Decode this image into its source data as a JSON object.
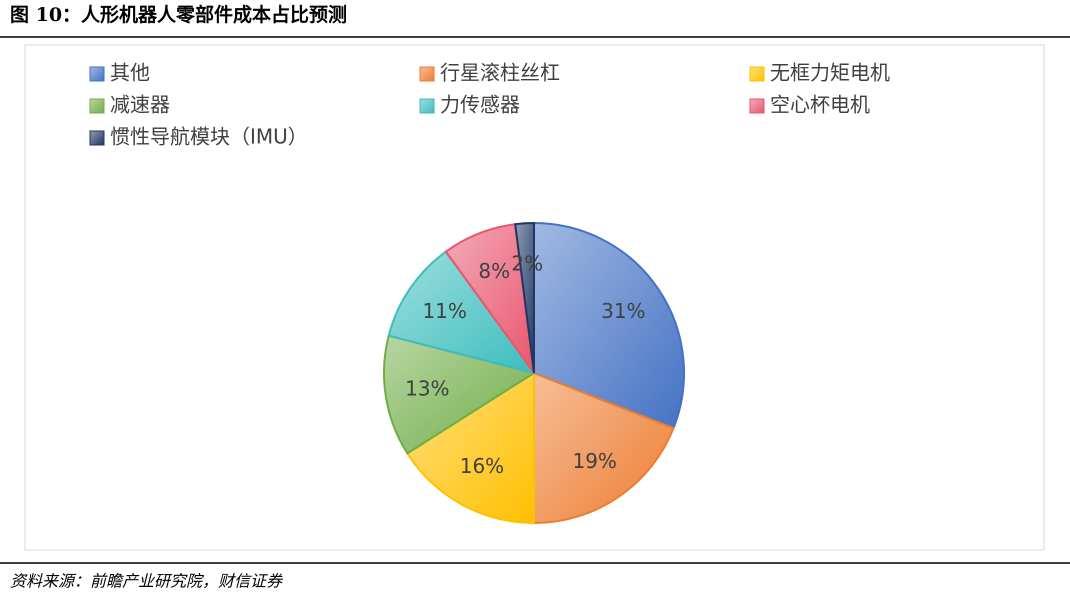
{
  "chart_data": {
    "type": "pie",
    "title": "图 10：人形机器人零部件成本占比预测",
    "source": "资料来源：前瞻产业研究院，财信证券",
    "categories": [
      "其他",
      "行星滚柱丝杠",
      "无框力矩电机",
      "减速器",
      "力传感器",
      "空心杯电机",
      "惯性导航模块（IMU）"
    ],
    "values": [
      31,
      19,
      16,
      13,
      11,
      8,
      2
    ],
    "value_labels": [
      "31%",
      "19%",
      "16%",
      "13%",
      "11%",
      "8%",
      "2%"
    ],
    "colors": [
      "#4472c4",
      "#ed7d31",
      "#ffc000",
      "#70ad47",
      "#3dbdbd",
      "#e8566f",
      "#203864"
    ],
    "legend": "top"
  }
}
